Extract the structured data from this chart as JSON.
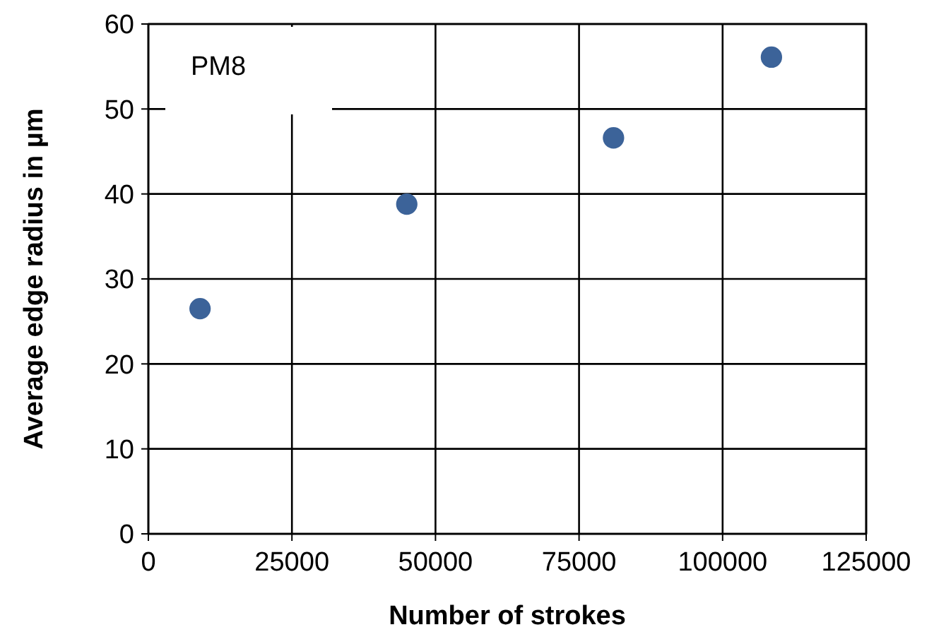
{
  "chart_data": {
    "type": "scatter",
    "xlabel": "Number of strokes",
    "ylabel": "Average edge radius in µm",
    "x": [
      9000,
      45000,
      81000,
      108500
    ],
    "series": [
      {
        "color": "#3c6399",
        "values": [
          26.5,
          38.8,
          46.6,
          56.1
        ]
      }
    ],
    "xlim": [
      0,
      125000
    ],
    "xticks": [
      0,
      25000,
      50000,
      75000,
      100000,
      125000
    ],
    "ylim": [
      0,
      60
    ],
    "yticks": [
      0,
      10,
      20,
      30,
      40,
      50,
      60
    ],
    "grid": true,
    "marker": "circle",
    "annotations": [
      "PM8"
    ]
  }
}
